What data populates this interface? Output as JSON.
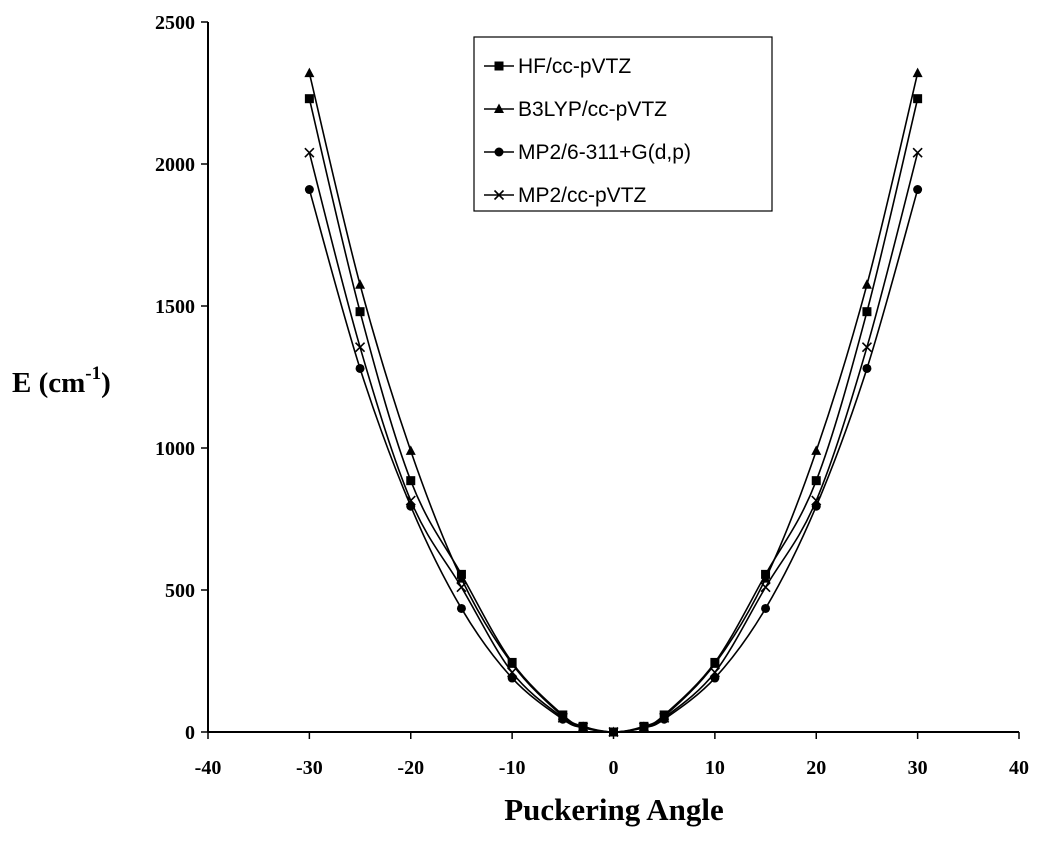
{
  "chart_data": {
    "type": "line",
    "xlabel": "Puckering Angle",
    "ylabel_main": "E (cm",
    "ylabel_sup": "-1",
    "ylabel_close": ")",
    "xlim": [
      -40,
      40
    ],
    "ylim": [
      0,
      2500
    ],
    "xticks": [
      -40,
      -30,
      -20,
      -10,
      0,
      10,
      20,
      30,
      40
    ],
    "yticks": [
      0,
      500,
      1000,
      1500,
      2000,
      2500
    ],
    "grid": false,
    "legend_position": "top-center",
    "x": [
      -30,
      -25,
      -20,
      -15,
      -10,
      -5,
      -3,
      0,
      3,
      5,
      10,
      15,
      20,
      25,
      30
    ],
    "series": [
      {
        "name": "HF/cc-pVTZ",
        "marker": "square",
        "values": [
          2230,
          1480,
          885,
          555,
          245,
          60,
          20,
          0,
          20,
          60,
          245,
          555,
          885,
          1480,
          2230
        ]
      },
      {
        "name": "B3LYP/cc-pVTZ",
        "marker": "triangle",
        "values": [
          2320,
          1575,
          990,
          540,
          240,
          55,
          18,
          0,
          18,
          55,
          240,
          540,
          990,
          1575,
          2320
        ]
      },
      {
        "name": "MP2/6-311+G(d,p)",
        "marker": "circle",
        "values": [
          1910,
          1280,
          795,
          435,
          190,
          45,
          15,
          0,
          15,
          45,
          190,
          435,
          795,
          1280,
          1910
        ]
      },
      {
        "name": "MP2/cc-pVTZ",
        "marker": "x",
        "values": [
          2040,
          1355,
          815,
          510,
          210,
          50,
          16,
          0,
          16,
          50,
          210,
          510,
          815,
          1355,
          2040
        ]
      }
    ]
  }
}
